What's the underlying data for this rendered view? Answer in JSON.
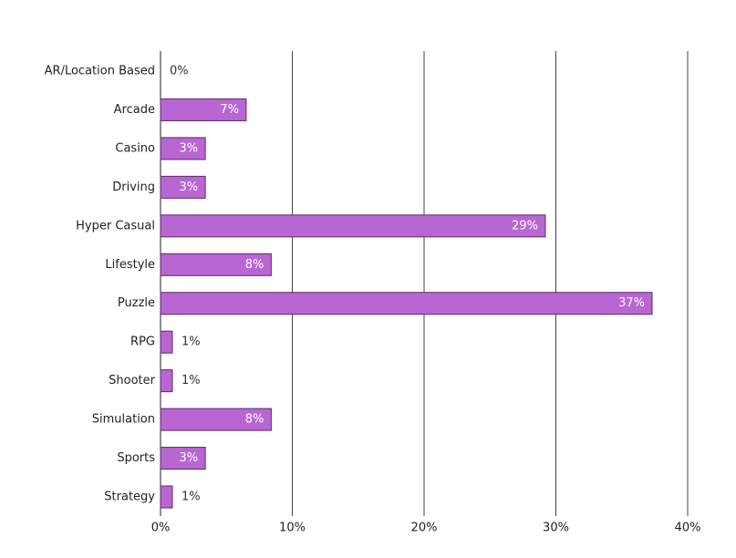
{
  "chart_data": {
    "type": "barh",
    "categories": [
      "AR/Location Based",
      "Arcade",
      "Casino",
      "Driving",
      "Hyper Casual",
      "Lifestyle",
      "Puzzle",
      "RPG",
      "Shooter",
      "Simulation",
      "Sports",
      "Strategy"
    ],
    "values": [
      0,
      6.5,
      3.4,
      3.4,
      29.2,
      8.4,
      37.3,
      0.9,
      0.9,
      8.4,
      3.4,
      0.9
    ],
    "value_labels": [
      "0%",
      "7%",
      "3%",
      "3%",
      "29%",
      "8%",
      "37%",
      "1%",
      "1%",
      "8%",
      "3%",
      "1%"
    ],
    "color": "#b866d1",
    "xlim": [
      0,
      40
    ],
    "xticks": [
      {
        "value": 0,
        "label": "0%"
      },
      {
        "value": 10,
        "label": "10%"
      },
      {
        "value": 20,
        "label": "20%"
      },
      {
        "value": 30,
        "label": "30%"
      },
      {
        "value": 40,
        "label": "40%"
      }
    ],
    "grid": true
  }
}
